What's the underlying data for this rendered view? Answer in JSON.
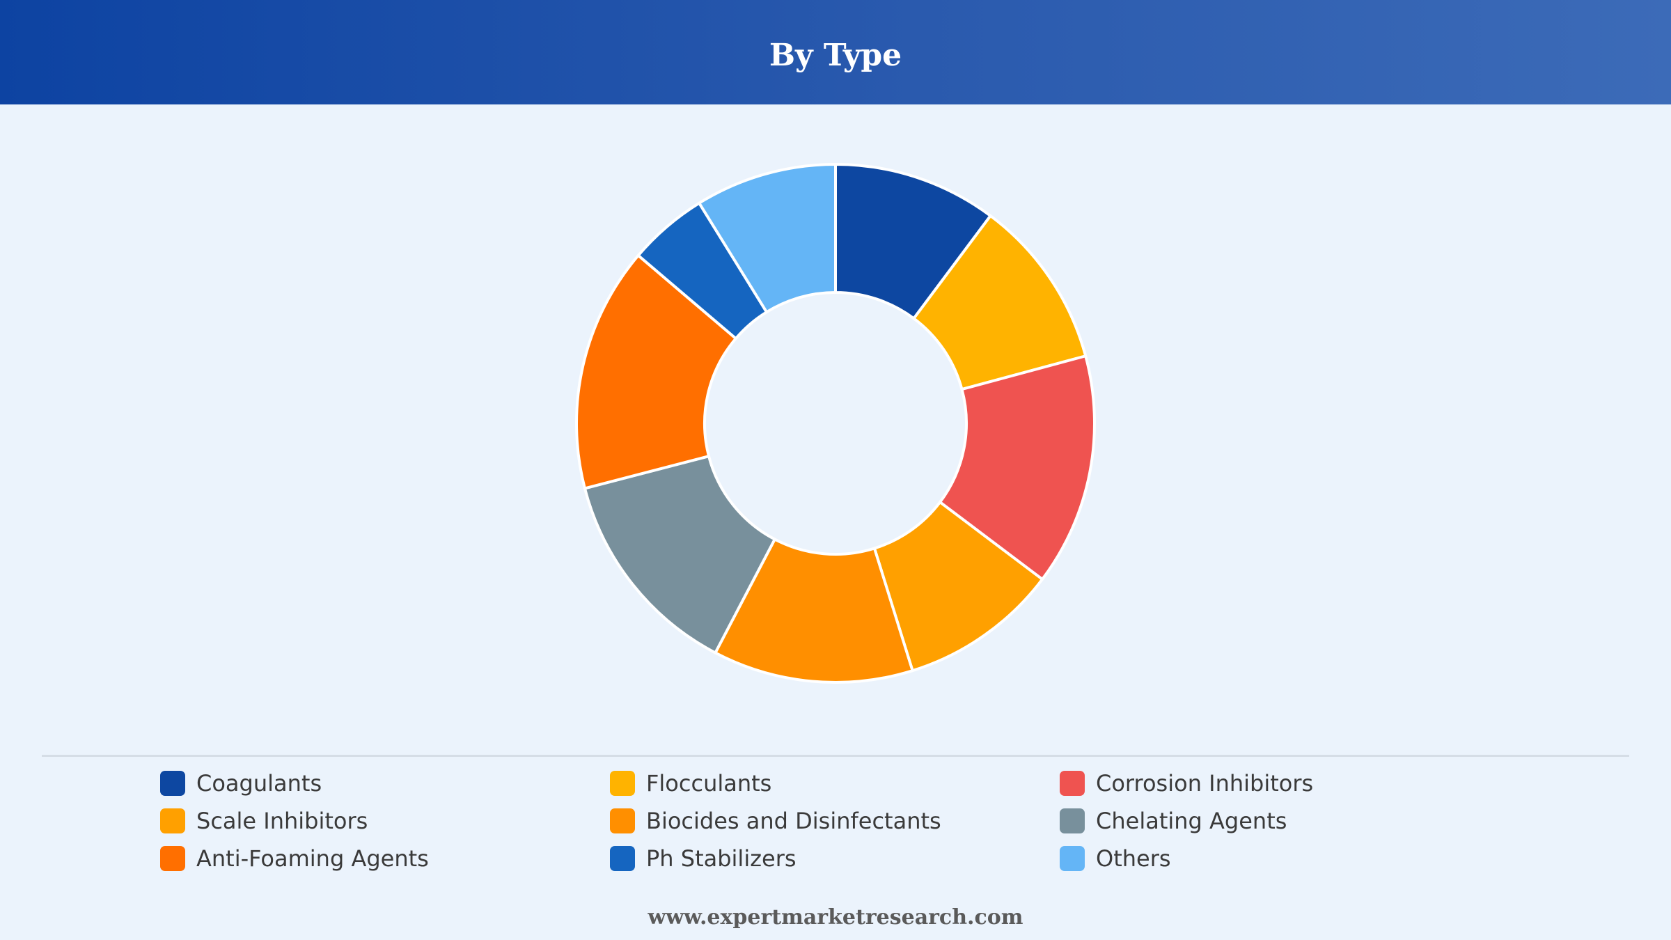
{
  "header": {
    "title": "By Type"
  },
  "footer": {
    "website": "www.expertmarketresearch.com"
  },
  "colors": {
    "header_gradient_start": "#0D43A2",
    "header_gradient_end": "#3C6BB8",
    "background": "#EBF3FC",
    "slice_stroke": "#FFFFFF"
  },
  "chart_data": {
    "type": "pie",
    "variant": "donut",
    "title": "By Type",
    "legend_position": "bottom",
    "series": [
      {
        "name": "Coagulants",
        "value": 10.3,
        "color": "#0D47A1"
      },
      {
        "name": "Flocculants",
        "value": 10.7,
        "color": "#FFB300"
      },
      {
        "name": "Corrosion Inhibitors",
        "value": 14.6,
        "color": "#EF5350"
      },
      {
        "name": "Scale Inhibitors",
        "value": 10.0,
        "color": "#FFA000"
      },
      {
        "name": "Biocides and Disinfectants",
        "value": 12.6,
        "color": "#FF8F00"
      },
      {
        "name": "Chelating Agents",
        "value": 13.4,
        "color": "#78909C"
      },
      {
        "name": "Anti-Foaming Agents",
        "value": 15.4,
        "color": "#FF6F00"
      },
      {
        "name": "Ph Stabilizers",
        "value": 5.0,
        "color": "#1565C0"
      },
      {
        "name": "Others",
        "value": 8.9,
        "color": "#64B5F6"
      }
    ]
  }
}
